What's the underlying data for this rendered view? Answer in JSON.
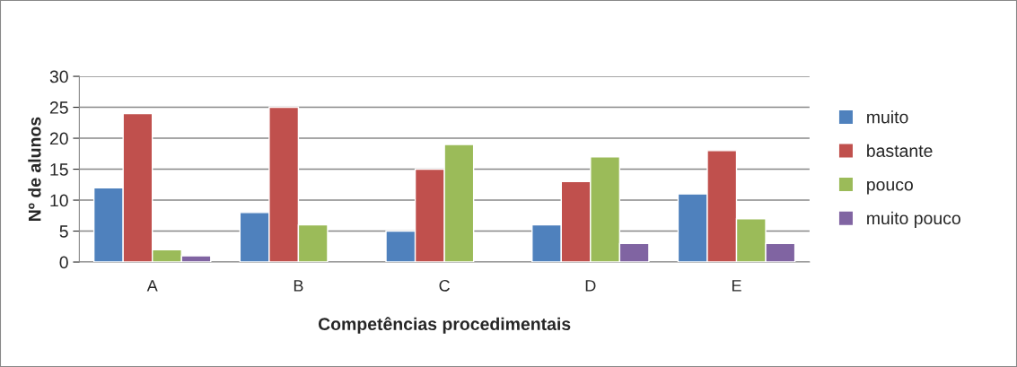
{
  "chart_data": {
    "type": "bar",
    "xlabel": "Competências procedimentais",
    "ylabel": "Nº de alunos",
    "categories": [
      "A",
      "B",
      "C",
      "D",
      "E"
    ],
    "series": [
      {
        "name": "muito",
        "color": "#4f81bd",
        "values": [
          12,
          8,
          5,
          6,
          11
        ]
      },
      {
        "name": "bastante",
        "color": "#c0504d",
        "values": [
          24,
          25,
          15,
          13,
          18
        ]
      },
      {
        "name": "pouco",
        "color": "#9bbb59",
        "values": [
          2,
          6,
          19,
          17,
          7
        ]
      },
      {
        "name": "muito pouco",
        "color": "#8064a2",
        "values": [
          1,
          null,
          null,
          3,
          3
        ]
      }
    ],
    "ylim": [
      0,
      30
    ],
    "yticks": [
      0,
      5,
      10,
      15,
      20,
      25,
      30
    ],
    "grid": "y",
    "legend": "right"
  }
}
